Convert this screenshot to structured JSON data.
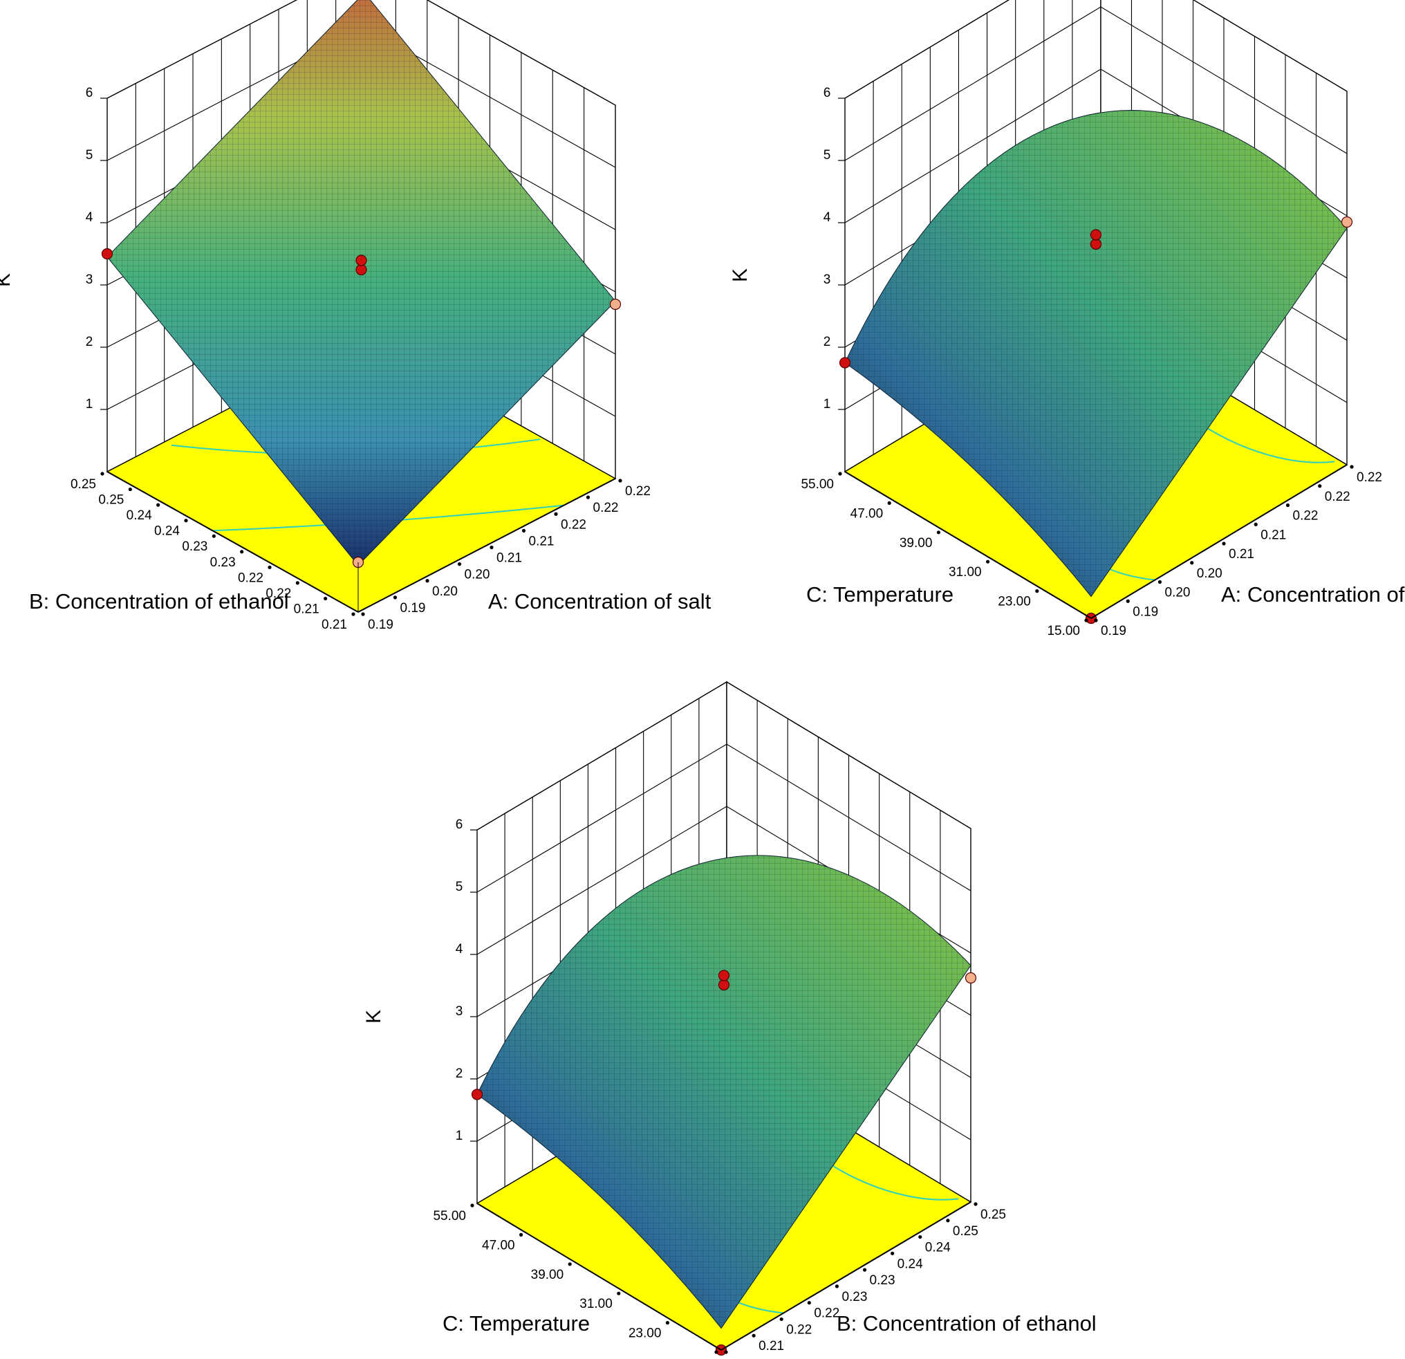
{
  "chart_data": [
    {
      "type": "surface3d",
      "zlabel": "K",
      "xlabel": "A: Concentration of salt",
      "ylabel": "B: Concentration of ethanol",
      "x_ticks": [
        "0.19",
        "0.19",
        "0.20",
        "0.20",
        "0.21",
        "0.21",
        "0.22",
        "0.22",
        "0.22"
      ],
      "y_ticks": [
        "0.21",
        "0.21",
        "0.22",
        "0.22",
        "0.23",
        "0.23",
        "0.24",
        "0.24",
        "0.25",
        "0.25"
      ],
      "z_ticks": [
        "1",
        "2",
        "3",
        "4",
        "5",
        "6"
      ],
      "zlim": [
        0,
        6
      ],
      "surface_corners": {
        "A_low_B_low": 0.75,
        "A_high_B_low": 2.85,
        "A_low_B_high": 3.45,
        "A_high_B_high": 5.55
      },
      "design_points": [
        {
          "label": "corner",
          "A": "0.19",
          "B": "0.21",
          "K": 0.8
        },
        {
          "label": "corner",
          "A": "0.22",
          "B": "0.21",
          "K": 2.8
        },
        {
          "label": "corner",
          "A": "0.19",
          "B": "0.25",
          "K": 3.5
        },
        {
          "label": "corner",
          "A": "0.22",
          "B": "0.25",
          "K": 6.0
        },
        {
          "label": "center",
          "A": "0.20",
          "B": "0.23",
          "K": 3.3
        },
        {
          "label": "center",
          "A": "0.20",
          "B": "0.23",
          "K": 3.45
        }
      ]
    },
    {
      "type": "surface3d",
      "zlabel": "K",
      "xlabel": "A: Concentration of salt",
      "ylabel": "C: Temperature",
      "x_ticks": [
        "0.19",
        "0.19",
        "0.20",
        "0.20",
        "0.21",
        "0.21",
        "0.22",
        "0.22",
        "0.22"
      ],
      "y_ticks": [
        "15.00",
        "23.00",
        "31.00",
        "39.00",
        "47.00",
        "55.00"
      ],
      "z_ticks": [
        "1",
        "2",
        "3",
        "4",
        "5",
        "6"
      ],
      "zlim": [
        0,
        6
      ],
      "surface_peak": {
        "A": "0.22",
        "C": "35",
        "K": 5.2
      },
      "design_points": [
        {
          "label": "corner",
          "A": "0.19",
          "C": "15.00",
          "K": 0.5
        },
        {
          "label": "corner",
          "A": "0.19",
          "C": "55.00",
          "K": 1.75
        },
        {
          "label": "corner",
          "A": "0.22",
          "C": "15.00",
          "K": 3.9
        },
        {
          "label": "center",
          "A": "0.20",
          "C": "35",
          "K": 3.6
        },
        {
          "label": "center",
          "A": "0.20",
          "C": "35",
          "K": 3.75
        }
      ]
    },
    {
      "type": "surface3d",
      "zlabel": "K",
      "xlabel": "B: Concentration of ethanol",
      "ylabel": "C: Temperature",
      "x_ticks": [
        "0.21",
        "0.21",
        "0.22",
        "0.22",
        "0.23",
        "0.23",
        "0.24",
        "0.24",
        "0.25",
        "0.25"
      ],
      "y_ticks": [
        "15.00",
        "23.00",
        "31.00",
        "39.00",
        "47.00",
        "55.00"
      ],
      "z_ticks": [
        "1",
        "2",
        "3",
        "4",
        "5",
        "6"
      ],
      "zlim": [
        0,
        6
      ],
      "surface_peak": {
        "B": "0.25",
        "C": "35",
        "K": 5.0
      },
      "design_points": [
        {
          "label": "corner",
          "B": "0.21",
          "C": "15.00",
          "K": 0.3
        },
        {
          "label": "corner",
          "B": "0.21",
          "C": "55.00",
          "K": 1.75
        },
        {
          "label": "corner",
          "B": "0.25",
          "C": "15.00",
          "K": 3.6
        },
        {
          "label": "center",
          "B": "0.23",
          "C": "35",
          "K": 3.5
        },
        {
          "label": "center",
          "B": "0.23",
          "C": "35",
          "K": 3.65
        }
      ]
    }
  ]
}
